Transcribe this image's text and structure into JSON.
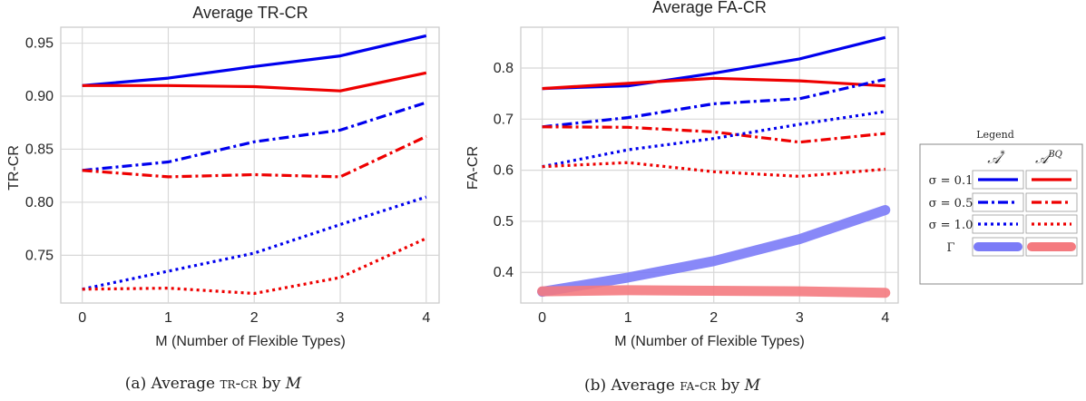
{
  "chart_data": [
    {
      "type": "line",
      "title": "Average TR-CR",
      "xlabel": "M (Number of Flexible Types)",
      "ylabel": "TR-CR",
      "x": [
        0,
        1,
        2,
        3,
        4
      ],
      "xticks": [
        "0",
        "1",
        "2",
        "3",
        "4"
      ],
      "yticks": [
        "0.75",
        "0.80",
        "0.85",
        "0.90",
        "0.95"
      ],
      "ylim": [
        0.705,
        0.965
      ],
      "grid": true,
      "caption": "(a) Average TR-CR by M",
      "series": [
        {
          "group": "A*",
          "sigma": "σ = 0.1",
          "color": "#0000ee",
          "dash": "solid",
          "values": [
            0.91,
            0.917,
            0.928,
            0.938,
            0.957
          ]
        },
        {
          "group": "A^BQ",
          "sigma": "σ = 0.1",
          "color": "#ee0000",
          "dash": "solid",
          "values": [
            0.91,
            0.91,
            0.909,
            0.905,
            0.922
          ]
        },
        {
          "group": "A*",
          "sigma": "σ = 0.5",
          "color": "#0000ee",
          "dash": "dashdot",
          "values": [
            0.83,
            0.838,
            0.857,
            0.868,
            0.894
          ]
        },
        {
          "group": "A^BQ",
          "sigma": "σ = 0.5",
          "color": "#ee0000",
          "dash": "dashdot",
          "values": [
            0.83,
            0.824,
            0.826,
            0.824,
            0.862
          ]
        },
        {
          "group": "A*",
          "sigma": "σ = 1.0",
          "color": "#0000ee",
          "dash": "dotted",
          "values": [
            0.718,
            0.735,
            0.752,
            0.779,
            0.805
          ]
        },
        {
          "group": "A^BQ",
          "sigma": "σ = 1.0",
          "color": "#ee0000",
          "dash": "dotted",
          "values": [
            0.718,
            0.719,
            0.714,
            0.729,
            0.766
          ]
        }
      ]
    },
    {
      "type": "line",
      "title": "Average FA-CR",
      "xlabel": "M (Number of Flexible Types)",
      "ylabel": "FA-CR",
      "x": [
        0,
        1,
        2,
        3,
        4
      ],
      "xticks": [
        "0",
        "1",
        "2",
        "3",
        "4"
      ],
      "yticks": [
        "0.4",
        "0.5",
        "0.6",
        "0.7",
        "0.8"
      ],
      "ylim": [
        0.34,
        0.88
      ],
      "grid": true,
      "caption": "(b) Average FA-CR by M",
      "series": [
        {
          "group": "A*",
          "sigma": "σ = 0.1",
          "color": "#0000ee",
          "dash": "solid",
          "values": [
            0.76,
            0.765,
            0.79,
            0.818,
            0.86
          ]
        },
        {
          "group": "A^BQ",
          "sigma": "σ = 0.1",
          "color": "#ee0000",
          "dash": "solid",
          "values": [
            0.76,
            0.77,
            0.78,
            0.775,
            0.765
          ]
        },
        {
          "group": "A*",
          "sigma": "σ = 0.5",
          "color": "#0000ee",
          "dash": "dashdot",
          "values": [
            0.685,
            0.703,
            0.73,
            0.74,
            0.778
          ]
        },
        {
          "group": "A^BQ",
          "sigma": "σ = 0.5",
          "color": "#ee0000",
          "dash": "dashdot",
          "values": [
            0.685,
            0.684,
            0.675,
            0.655,
            0.672
          ]
        },
        {
          "group": "A*",
          "sigma": "σ = 1.0",
          "color": "#0000ee",
          "dash": "dotted",
          "values": [
            0.607,
            0.64,
            0.662,
            0.69,
            0.715
          ]
        },
        {
          "group": "A^BQ",
          "sigma": "σ = 1.0",
          "color": "#ee0000",
          "dash": "dotted",
          "values": [
            0.607,
            0.615,
            0.597,
            0.588,
            0.602
          ]
        },
        {
          "group": "A*",
          "sigma": "Γ",
          "color": "#7b7bf7",
          "dash": "thick",
          "values": [
            0.362,
            0.39,
            0.422,
            0.465,
            0.522
          ]
        },
        {
          "group": "A^BQ",
          "sigma": "Γ",
          "color": "#f47a7f",
          "dash": "thick",
          "values": [
            0.363,
            0.365,
            0.364,
            0.363,
            0.36
          ]
        }
      ]
    }
  ],
  "legend": {
    "title": "Legend",
    "col_heads": [
      "A*",
      "A^BQ"
    ],
    "rows": [
      {
        "label": "σ = 0.1",
        "dash": "solid"
      },
      {
        "label": "σ = 0.5",
        "dash": "dashdot"
      },
      {
        "label": "σ = 1.0",
        "dash": "dotted"
      },
      {
        "label": "Γ",
        "dash": "thick"
      }
    ],
    "colors": {
      "A*": "#0000ee",
      "A^BQ": "#ee0000",
      "A*_gamma": "#7b7bf7",
      "A^BQ_gamma": "#f47a7f"
    }
  }
}
